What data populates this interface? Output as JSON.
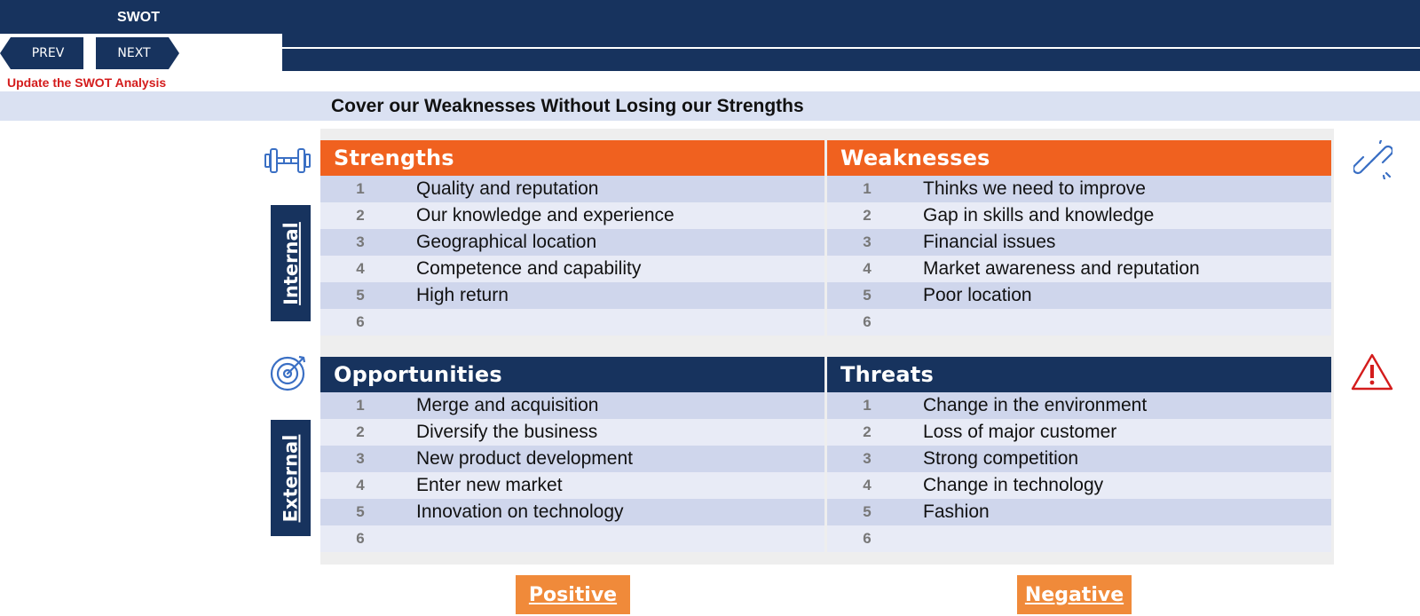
{
  "header": {
    "title": "SWOT",
    "prev_label": "PREV",
    "next_label": "NEXT",
    "update_link": "Update the SWOT Analysis",
    "subtitle": "Cover our Weaknesses Without Losing our Strengths"
  },
  "axes": {
    "internal_label": "Internal",
    "external_label": "External",
    "positive_label": "Positive",
    "negative_label": "Negative"
  },
  "quadrants": {
    "strengths": {
      "title": "Strengths",
      "items": [
        {
          "num": "1",
          "text": "Quality and reputation"
        },
        {
          "num": "2",
          "text": "Our knowledge and experience"
        },
        {
          "num": "3",
          "text": "Geographical location"
        },
        {
          "num": "4",
          "text": "Competence and capability"
        },
        {
          "num": "5",
          "text": "High return"
        },
        {
          "num": "6",
          "text": ""
        }
      ]
    },
    "weaknesses": {
      "title": "Weaknesses",
      "items": [
        {
          "num": "1",
          "text": "Thinks we need to improve"
        },
        {
          "num": "2",
          "text": "Gap in skills and knowledge"
        },
        {
          "num": "3",
          "text": "Financial issues"
        },
        {
          "num": "4",
          "text": "Market awareness and reputation"
        },
        {
          "num": "5",
          "text": "Poor location"
        },
        {
          "num": "6",
          "text": ""
        }
      ]
    },
    "opportunities": {
      "title": "Opportunities",
      "items": [
        {
          "num": "1",
          "text": "Merge and acquisition"
        },
        {
          "num": "2",
          "text": "Diversify the business"
        },
        {
          "num": "3",
          "text": "New product development"
        },
        {
          "num": "4",
          "text": "Enter new market"
        },
        {
          "num": "5",
          "text": "Innovation on technology"
        },
        {
          "num": "6",
          "text": ""
        }
      ]
    },
    "threats": {
      "title": "Threats",
      "items": [
        {
          "num": "1",
          "text": "Change in the environment"
        },
        {
          "num": "2",
          "text": "Loss of major customer"
        },
        {
          "num": "3",
          "text": "Strong competition"
        },
        {
          "num": "4",
          "text": "Change in technology"
        },
        {
          "num": "5",
          "text": "Fashion"
        },
        {
          "num": "6",
          "text": ""
        }
      ]
    }
  },
  "colors": {
    "navy": "#17335e",
    "orange": "#f0611f",
    "button_orange": "#f08a3a",
    "row_dark": "#cfd6ec",
    "row_light": "#e8ebf6",
    "link_red": "#d41c1c"
  },
  "icons": {
    "strengths": "dumbbell-icon",
    "weaknesses": "broken-link-icon",
    "opportunities": "target-icon",
    "threats": "warning-icon"
  }
}
